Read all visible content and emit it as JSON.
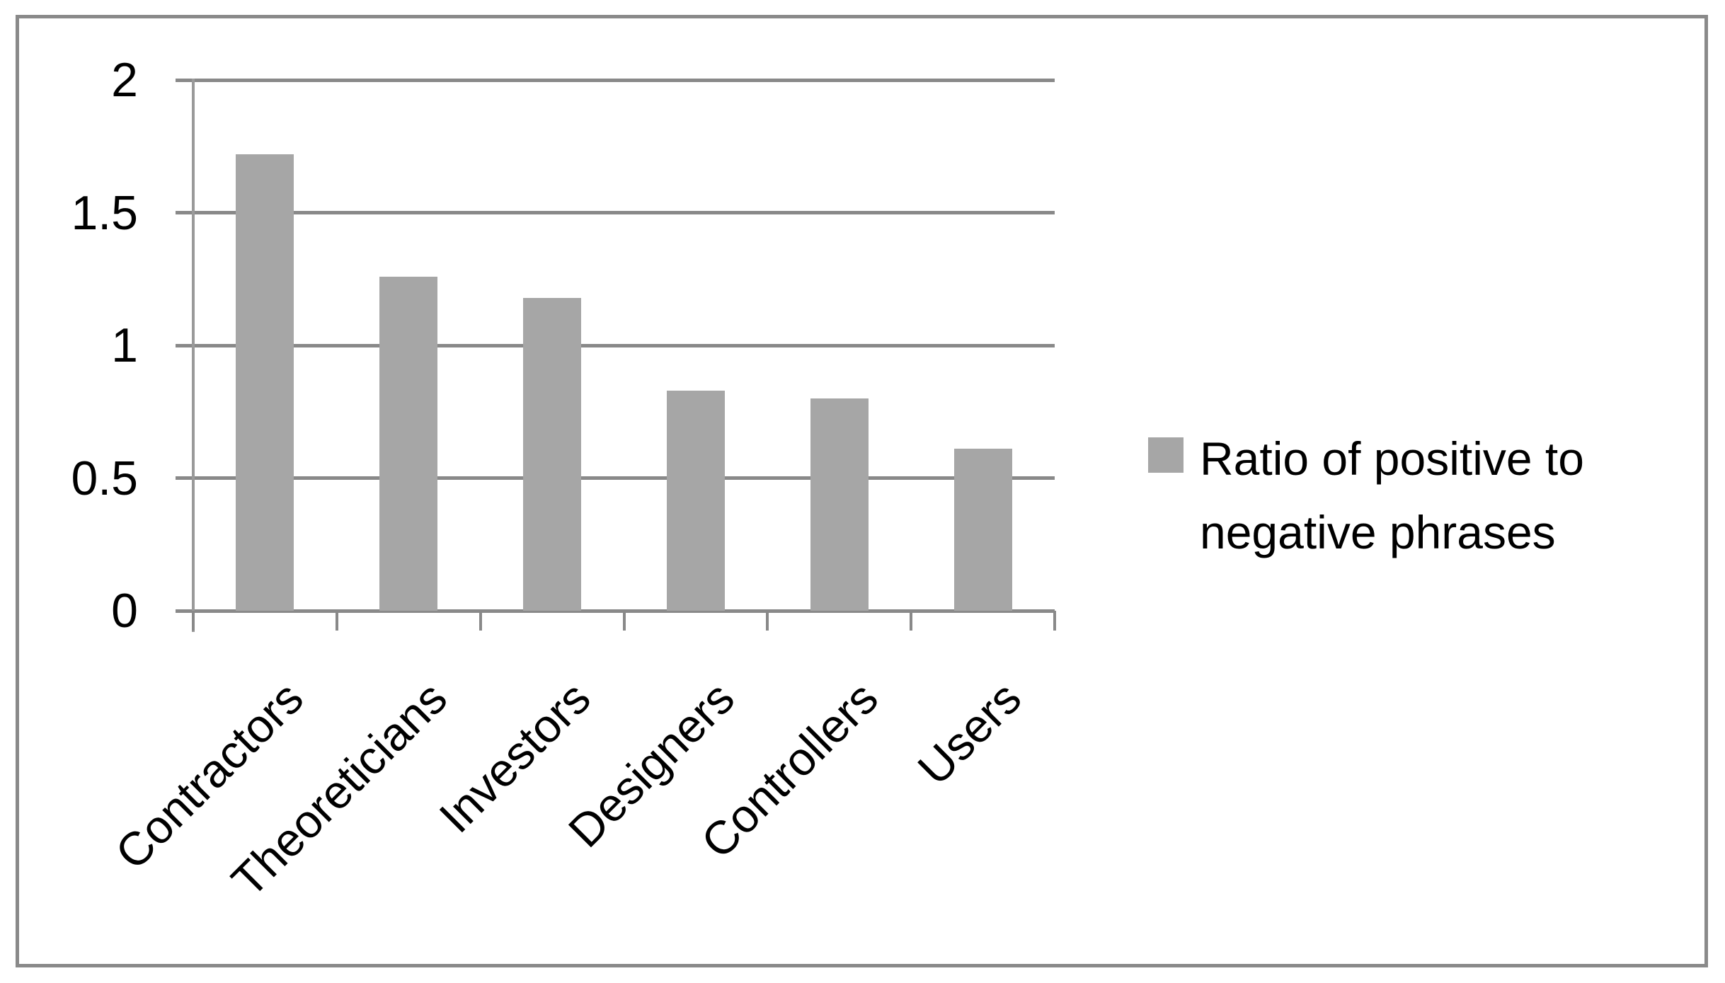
{
  "chart_data": {
    "type": "bar",
    "title": "",
    "xlabel": "",
    "ylabel": "",
    "categories": [
      "Contractors",
      "Theoreticians",
      "Investors",
      "Designers",
      "Controllers",
      "Users"
    ],
    "series": [
      {
        "name": "Ratio of positive to negative phrases",
        "values": [
          1.72,
          1.26,
          1.18,
          0.83,
          0.8,
          0.61
        ]
      }
    ],
    "ylim": [
      0,
      2
    ],
    "yticks": [
      0,
      0.5,
      1,
      1.5,
      2
    ],
    "ytick_labels": [
      "0",
      "0.5",
      "1",
      "1.5",
      "2"
    ],
    "grid": true,
    "legend_position": "right",
    "legend_lines": [
      "Ratio of positive to",
      "negative phrases"
    ],
    "colors": {
      "bar": "#a6a6a6",
      "gridline": "#898989",
      "axis": "#9a9a9a",
      "frame_border": "#8a8a8a",
      "text": "#000000",
      "background": "#ffffff"
    }
  }
}
